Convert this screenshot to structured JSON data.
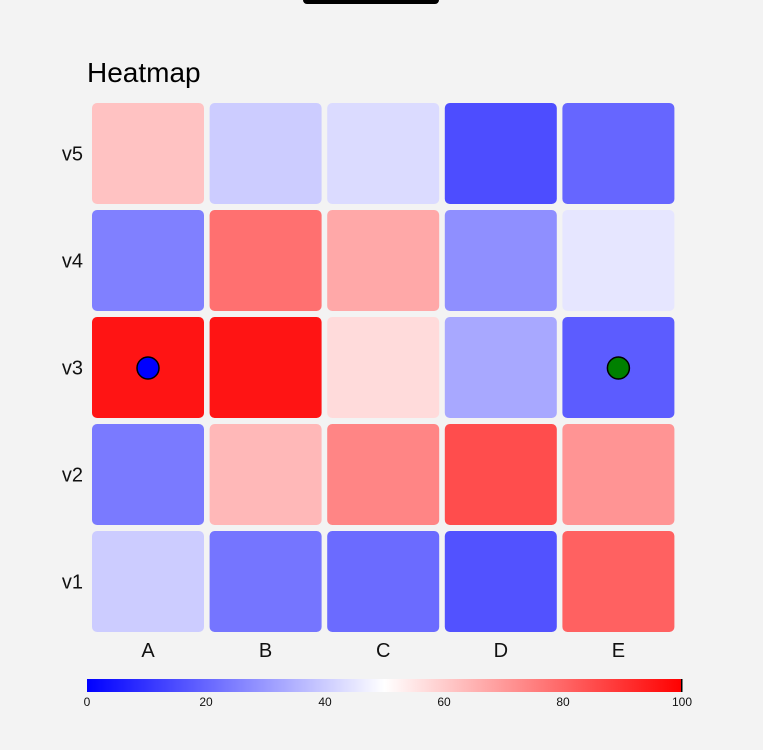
{
  "chart_data": {
    "type": "heatmap",
    "title": "Heatmap",
    "columns": [
      "A",
      "B",
      "C",
      "D",
      "E"
    ],
    "rows": [
      "v5",
      "v4",
      "v3",
      "v2",
      "v1"
    ],
    "values": [
      [
        62,
        40,
        43,
        15,
        20
      ],
      [
        25,
        78,
        67,
        28,
        45
      ],
      [
        96,
        96,
        57,
        33,
        18
      ],
      [
        24,
        64,
        74,
        85,
        71
      ],
      [
        40,
        23,
        21,
        16,
        81
      ]
    ],
    "markers": [
      {
        "row": "v3",
        "column": "A",
        "color": "#0000ff"
      },
      {
        "row": "v3",
        "column": "E",
        "color": "#008000"
      }
    ],
    "colorscale": {
      "min": 0,
      "max": 100,
      "colors": [
        "#0000ff",
        "#ffffff",
        "#ff0000"
      ],
      "ticks": [
        0,
        20,
        40,
        60,
        80,
        100
      ]
    },
    "legend": "bottom"
  }
}
